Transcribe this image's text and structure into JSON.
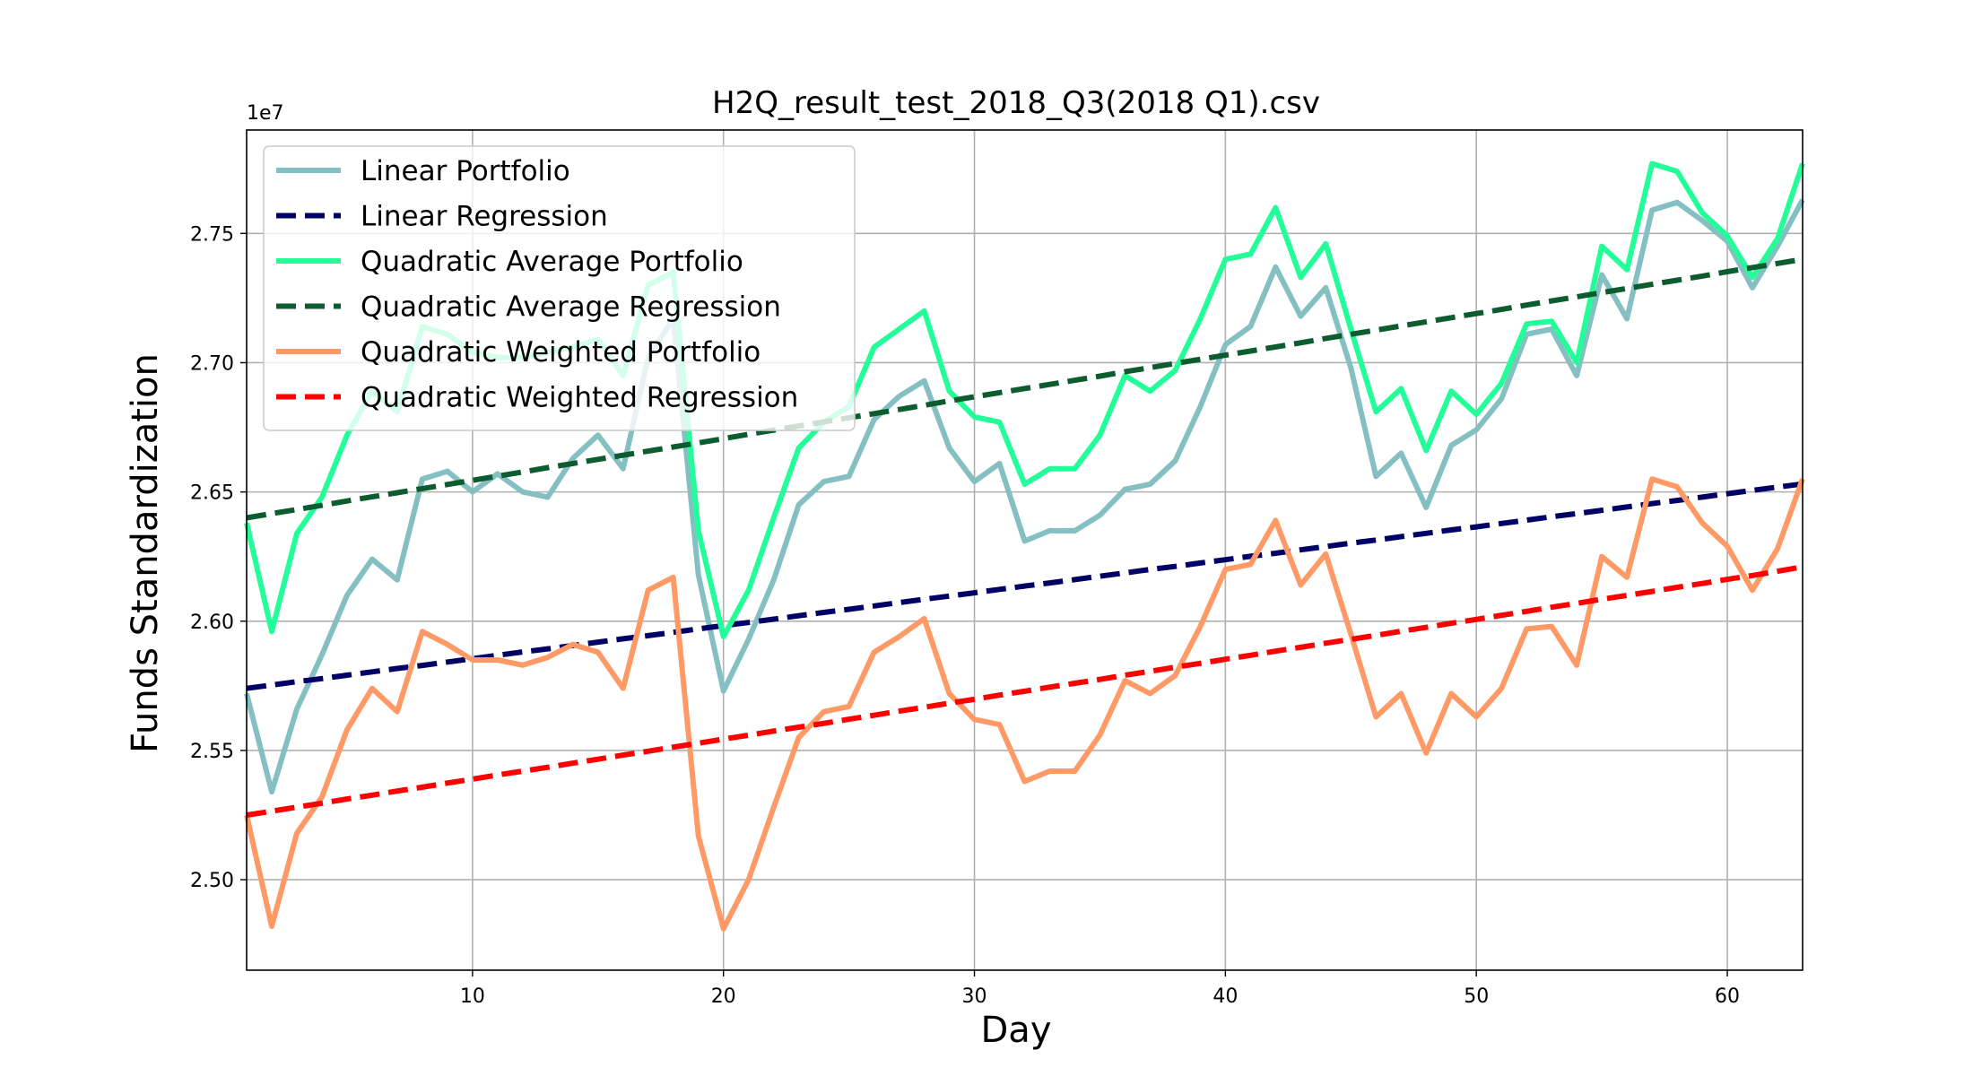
{
  "chart_data": {
    "type": "line",
    "title": "H2Q_result_test_2018_Q3(2018 Q1).csv",
    "xlabel": "Day",
    "ylabel": "Funds Standardization",
    "y_offset_label": "1e7",
    "xlim": [
      1,
      63
    ],
    "ylim": [
      2.465,
      2.79
    ],
    "x_ticks": [
      10,
      20,
      30,
      40,
      50,
      60
    ],
    "y_ticks": [
      2.5,
      2.55,
      2.6,
      2.65,
      2.7,
      2.75
    ],
    "x_tick_labels": [
      "10",
      "20",
      "30",
      "40",
      "50",
      "60"
    ],
    "y_tick_labels": [
      "2.50",
      "2.55",
      "2.60",
      "2.65",
      "2.70",
      "2.75"
    ],
    "grid": true,
    "legend_position": "top-left",
    "x": [
      1,
      2,
      3,
      4,
      5,
      6,
      7,
      8,
      9,
      10,
      11,
      12,
      13,
      14,
      15,
      16,
      17,
      18,
      19,
      20,
      21,
      22,
      23,
      24,
      25,
      26,
      27,
      28,
      29,
      30,
      31,
      32,
      33,
      34,
      35,
      36,
      37,
      38,
      39,
      40,
      41,
      42,
      43,
      44,
      45,
      46,
      47,
      48,
      49,
      50,
      51,
      52,
      53,
      54,
      55,
      56,
      57,
      58,
      59,
      60,
      61,
      62,
      63
    ],
    "series": [
      {
        "name": "Linear Portfolio",
        "color": "#84bfc1",
        "style": "solid",
        "values": [
          2.572,
          2.534,
          2.566,
          2.587,
          2.61,
          2.624,
          2.616,
          2.655,
          2.658,
          2.65,
          2.657,
          2.65,
          2.648,
          2.663,
          2.672,
          2.659,
          2.702,
          2.717,
          2.618,
          2.573,
          2.593,
          2.616,
          2.645,
          2.654,
          2.656,
          2.678,
          2.687,
          2.693,
          2.667,
          2.654,
          2.661,
          2.631,
          2.635,
          2.635,
          2.641,
          2.651,
          2.653,
          2.662,
          2.683,
          2.707,
          2.714,
          2.737,
          2.718,
          2.729,
          2.698,
          2.656,
          2.665,
          2.644,
          2.668,
          2.674,
          2.686,
          2.711,
          2.713,
          2.695,
          2.734,
          2.717,
          2.759,
          2.762,
          2.755,
          2.747,
          2.729,
          2.745,
          2.763
        ]
      },
      {
        "name": "Linear Regression",
        "color": "#000066",
        "style": "dashed",
        "values": [
          2.574,
          2.5753,
          2.5766,
          2.5778,
          2.5791,
          2.5804,
          2.5817,
          2.5829,
          2.5842,
          2.5855,
          2.5868,
          2.5881,
          2.5893,
          2.5906,
          2.5919,
          2.5932,
          2.5944,
          2.5957,
          2.597,
          2.5983,
          2.5995,
          2.6008,
          2.6021,
          2.6034,
          2.6046,
          2.6059,
          2.6072,
          2.6085,
          2.6097,
          2.611,
          2.6123,
          2.6136,
          2.6148,
          2.6161,
          2.6174,
          2.6187,
          2.62,
          2.6212,
          2.6225,
          2.6238,
          2.6251,
          2.6263,
          2.6276,
          2.6289,
          2.6302,
          2.6314,
          2.6327,
          2.634,
          2.6353,
          2.6365,
          2.6378,
          2.6391,
          2.6404,
          2.6416,
          2.6429,
          2.6442,
          2.6455,
          2.6467,
          2.648,
          2.6493,
          2.6506,
          2.6519,
          2.6531
        ]
      },
      {
        "name": "Quadratic Average Portfolio",
        "color": "#22ff99",
        "style": "solid",
        "values": [
          2.638,
          2.596,
          2.634,
          2.648,
          2.672,
          2.689,
          2.681,
          2.714,
          2.711,
          2.704,
          2.702,
          2.702,
          2.704,
          2.706,
          2.709,
          2.695,
          2.73,
          2.735,
          2.635,
          2.594,
          2.612,
          2.64,
          2.667,
          2.677,
          2.683,
          2.706,
          2.713,
          2.72,
          2.689,
          2.679,
          2.677,
          2.653,
          2.659,
          2.659,
          2.672,
          2.695,
          2.689,
          2.697,
          2.717,
          2.74,
          2.742,
          2.76,
          2.733,
          2.746,
          2.713,
          2.681,
          2.69,
          2.666,
          2.689,
          2.68,
          2.692,
          2.715,
          2.716,
          2.7,
          2.745,
          2.736,
          2.777,
          2.774,
          2.758,
          2.749,
          2.733,
          2.748,
          2.777
        ]
      },
      {
        "name": "Quadratic Average Regression",
        "color": "#0d5c2f",
        "style": "dashed",
        "values": [
          2.64,
          2.6416,
          2.6432,
          2.6448,
          2.6465,
          2.6481,
          2.6497,
          2.6513,
          2.6529,
          2.6545,
          2.6561,
          2.6577,
          2.6594,
          2.661,
          2.6626,
          2.6642,
          2.6658,
          2.6674,
          2.669,
          2.6706,
          2.6723,
          2.6739,
          2.6755,
          2.6771,
          2.6787,
          2.6803,
          2.6819,
          2.6835,
          2.6852,
          2.6868,
          2.6884,
          2.69,
          2.6916,
          2.6932,
          2.6948,
          2.6965,
          2.6981,
          2.6997,
          2.7013,
          2.7029,
          2.7045,
          2.7061,
          2.7077,
          2.7094,
          2.711,
          2.7126,
          2.7142,
          2.7158,
          2.7174,
          2.719,
          2.7206,
          2.7223,
          2.7239,
          2.7255,
          2.7271,
          2.7287,
          2.7303,
          2.7319,
          2.7335,
          2.7352,
          2.7368,
          2.7384,
          2.74
        ]
      },
      {
        "name": "Quadratic Weighted Portfolio",
        "color": "#ff9966",
        "style": "solid",
        "values": [
          2.525,
          2.482,
          2.518,
          2.532,
          2.558,
          2.574,
          2.565,
          2.596,
          2.591,
          2.585,
          2.585,
          2.583,
          2.586,
          2.591,
          2.588,
          2.574,
          2.612,
          2.617,
          2.517,
          2.481,
          2.5,
          2.528,
          2.555,
          2.565,
          2.567,
          2.588,
          2.594,
          2.601,
          2.572,
          2.562,
          2.56,
          2.538,
          2.542,
          2.542,
          2.556,
          2.577,
          2.572,
          2.579,
          2.598,
          2.62,
          2.622,
          2.639,
          2.614,
          2.626,
          2.595,
          2.563,
          2.572,
          2.549,
          2.572,
          2.563,
          2.574,
          2.597,
          2.598,
          2.583,
          2.625,
          2.617,
          2.655,
          2.652,
          2.638,
          2.629,
          2.612,
          2.628,
          2.655
        ]
      },
      {
        "name": "Quadratic Weighted Regression",
        "color": "#ff0000",
        "style": "dashed",
        "values": [
          2.525,
          2.5265,
          2.5281,
          2.5296,
          2.5312,
          2.5327,
          2.5343,
          2.5358,
          2.5374,
          2.5389,
          2.5405,
          2.542,
          2.5435,
          2.5451,
          2.5466,
          2.5482,
          2.5497,
          2.5513,
          2.5528,
          2.5544,
          2.5559,
          2.5575,
          2.559,
          2.5605,
          2.5621,
          2.5636,
          2.5652,
          2.5667,
          2.5683,
          2.5698,
          2.5714,
          2.5729,
          2.5745,
          2.576,
          2.5775,
          2.5791,
          2.5806,
          2.5822,
          2.5837,
          2.5853,
          2.5868,
          2.5884,
          2.5899,
          2.5915,
          2.593,
          2.5945,
          2.5961,
          2.5976,
          2.5992,
          2.6007,
          2.6023,
          2.6038,
          2.6054,
          2.6069,
          2.6085,
          2.61,
          2.6115,
          2.6131,
          2.6146,
          2.6162,
          2.6177,
          2.6193,
          2.621
        ]
      }
    ]
  }
}
